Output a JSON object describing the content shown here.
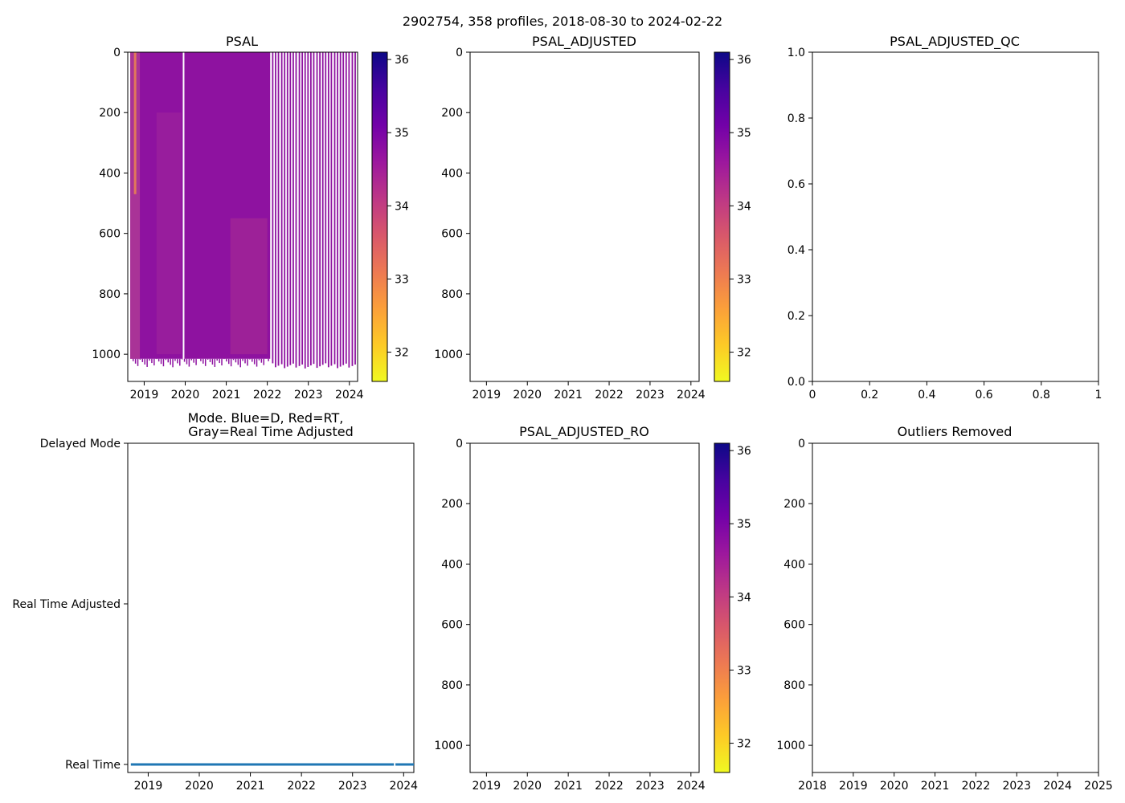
{
  "figure_title": "2902754, 358 profiles, 2018-08-30 to 2024-02-22",
  "colors": {
    "line": "#1f77b4",
    "plasma": [
      "#0d0887",
      "#46039f",
      "#7201a8",
      "#9c179e",
      "#bd3786",
      "#d8576b",
      "#ed7953",
      "#fb9f3a",
      "#fdca26",
      "#f0f921"
    ],
    "psal_fill": "#8e12a0"
  },
  "chart_data": [
    {
      "id": "psal",
      "type": "heatmap",
      "title": "PSAL",
      "x_range": [
        2018.6,
        2024.2
      ],
      "y_range": [
        1090,
        0
      ],
      "x_ticks": [
        2019,
        2020,
        2021,
        2022,
        2023,
        2024
      ],
      "y_ticks": [
        0,
        200,
        400,
        600,
        800,
        1000
      ],
      "dense_period": [
        2018.66,
        2022.07
      ],
      "gap": 2019.96,
      "sparse_profiles": [
        2022.13,
        2022.2,
        2022.27,
        2022.35,
        2022.42,
        2022.49,
        2022.56,
        2022.63,
        2022.7,
        2022.78,
        2022.85,
        2022.92,
        2022.99,
        2023.06,
        2023.13,
        2023.21,
        2023.28,
        2023.35,
        2023.42,
        2023.49,
        2023.56,
        2023.64,
        2023.71,
        2023.78,
        2023.85,
        2023.92,
        2023.99,
        2024.07,
        2024.14
      ],
      "colorbar": {
        "min": 31.6,
        "max": 36.1,
        "ticks": [
          32,
          33,
          34,
          35,
          36
        ]
      }
    },
    {
      "id": "psal_adjusted",
      "type": "heatmap",
      "title": "PSAL_ADJUSTED",
      "x_range": [
        2018.6,
        2024.2
      ],
      "y_range": [
        1090,
        0
      ],
      "x_ticks": [
        2019,
        2020,
        2021,
        2022,
        2023,
        2024
      ],
      "y_ticks": [
        0,
        200,
        400,
        600,
        800,
        1000
      ],
      "colorbar": {
        "min": 31.6,
        "max": 36.1,
        "ticks": [
          32,
          33,
          34,
          35,
          36
        ]
      }
    },
    {
      "id": "psal_adjusted_qc",
      "type": "scatter",
      "title": "PSAL_ADJUSTED_QC",
      "x_range": [
        0,
        1
      ],
      "y_range": [
        0,
        1
      ],
      "x_ticks": [
        0.0,
        0.2,
        0.4,
        0.6,
        0.8,
        1.0
      ],
      "y_ticks": [
        0.0,
        0.2,
        0.4,
        0.6,
        0.8,
        1.0
      ]
    },
    {
      "id": "mode",
      "type": "line",
      "title": "Mode. Blue=D, Red=RT,\nGray=Real Time Adjusted",
      "x_range": [
        2018.6,
        2024.2
      ],
      "y_range": [
        -0.05,
        2.0
      ],
      "x_ticks": [
        2019,
        2020,
        2021,
        2022,
        2023,
        2024
      ],
      "y_categories": [
        "Real Time",
        "Real Time Adjusted",
        "Delayed Mode"
      ],
      "segments": [
        [
          2018.66,
          2023.81,
          0
        ],
        [
          2023.84,
          2024.2,
          0
        ]
      ]
    },
    {
      "id": "psal_adjusted_ro",
      "type": "heatmap",
      "title": "PSAL_ADJUSTED_RO",
      "x_range": [
        2018.6,
        2024.2
      ],
      "y_range": [
        1090,
        0
      ],
      "x_ticks": [
        2019,
        2020,
        2021,
        2022,
        2023,
        2024
      ],
      "y_ticks": [
        0,
        200,
        400,
        600,
        800,
        1000
      ],
      "colorbar": {
        "min": 31.6,
        "max": 36.1,
        "ticks": [
          32,
          33,
          34,
          35,
          36
        ]
      }
    },
    {
      "id": "outliers",
      "type": "scatter",
      "title": "Outliers Removed",
      "x_range": [
        2018,
        2025
      ],
      "y_range": [
        1090,
        0
      ],
      "x_ticks": [
        2018,
        2019,
        2020,
        2021,
        2022,
        2023,
        2024,
        2025
      ],
      "y_ticks": [
        0,
        200,
        400,
        600,
        800,
        1000
      ]
    }
  ]
}
